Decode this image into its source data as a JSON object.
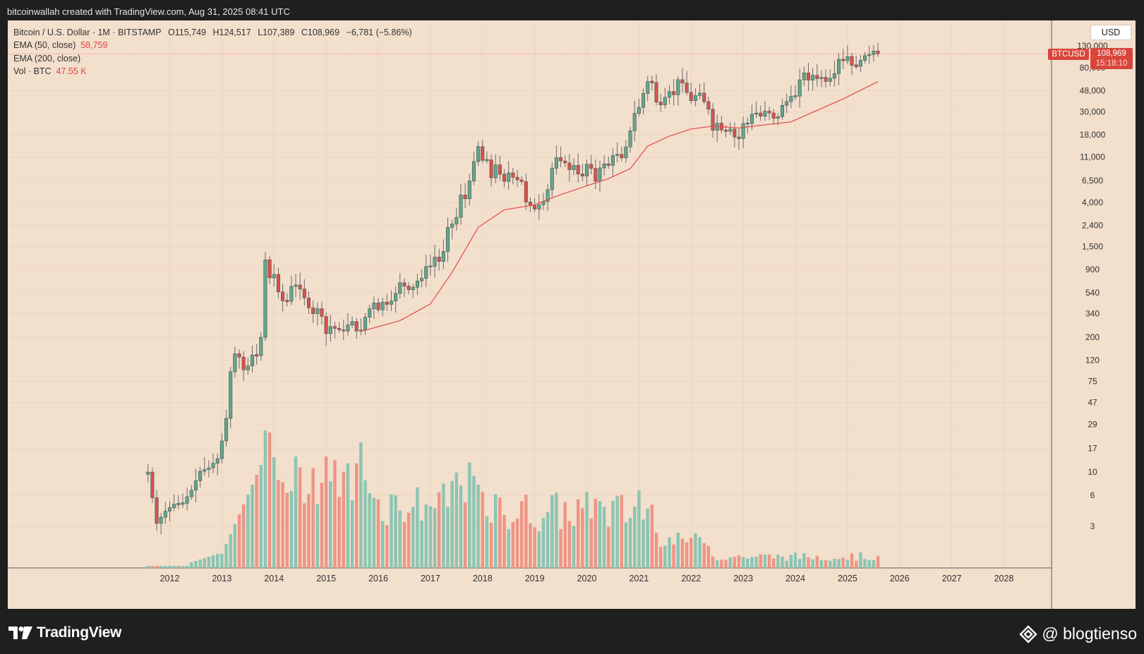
{
  "attribution": "bitcoinwallah created with TradingView.com, Aug 31, 2025 08:41 UTC",
  "legend": {
    "symbol_line": "Bitcoin / U.S. Dollar · 1M · BITSTAMP",
    "open": "O115,749",
    "high": "H124,517",
    "low": "L107,389",
    "close": "C108,969",
    "change": "−6,781 (−5.86%)",
    "ema50_label": "EMA (50, close)",
    "ema50_value": "58,759",
    "ema200_label": "EMA (200, close)",
    "vol_label": "Vol · BTC",
    "vol_value": "47.55 K"
  },
  "currency_button": "USD",
  "symbol_tag": "BTCUSD",
  "price_tag": {
    "price": "108,969",
    "countdown": "15:18:10"
  },
  "footer": {
    "logo_text": "TradingView",
    "watermark": "@ blogtienso"
  },
  "colors": {
    "up": "#5fa88e",
    "down": "#d7534b",
    "vol_up": "#8cc5b3",
    "vol_down": "#ef9585",
    "ema": "#e8484a",
    "background": "#f2dfcc"
  },
  "chart_data": {
    "type": "candlestick",
    "interval": "1M",
    "y_scale": "log",
    "y_ticks": [
      "3",
      "6",
      "10",
      "17",
      "29",
      "47",
      "75",
      "120",
      "200",
      "340",
      "540",
      "900",
      "1,500",
      "2,400",
      "4,000",
      "6,500",
      "11,000",
      "18,000",
      "30,000",
      "48,000",
      "80,000",
      "130,000"
    ],
    "x_ticks": [
      "2012",
      "2013",
      "2014",
      "2015",
      "2016",
      "2017",
      "2018",
      "2019",
      "2020",
      "2021",
      "2022",
      "2023",
      "2024",
      "2025",
      "2026",
      "2027",
      "2028"
    ],
    "x_range": [
      "2011-06",
      "2028-12"
    ],
    "monthly_close_path": [
      [
        "2011-08",
        10.0
      ],
      [
        "2011-10",
        3.2
      ],
      [
        "2011-12",
        4.2
      ],
      [
        "2012-02",
        4.9
      ],
      [
        "2012-04",
        5.0
      ],
      [
        "2012-06",
        6.7
      ],
      [
        "2012-08",
        10.2
      ],
      [
        "2012-10",
        11.0
      ],
      [
        "2012-12",
        13.5
      ],
      [
        "2013-01",
        20
      ],
      [
        "2013-02",
        33
      ],
      [
        "2013-03",
        93
      ],
      [
        "2013-04",
        139
      ],
      [
        "2013-05",
        129
      ],
      [
        "2013-06",
        97
      ],
      [
        "2013-07",
        106
      ],
      [
        "2013-08",
        135
      ],
      [
        "2013-09",
        133
      ],
      [
        "2013-10",
        200
      ],
      [
        "2013-11",
        1120
      ],
      [
        "2013-12",
        750
      ],
      [
        "2014-01",
        810
      ],
      [
        "2014-02",
        550
      ],
      [
        "2014-03",
        450
      ],
      [
        "2014-04",
        445
      ],
      [
        "2014-05",
        620
      ],
      [
        "2014-06",
        640
      ],
      [
        "2014-07",
        585
      ],
      [
        "2014-08",
        480
      ],
      [
        "2014-09",
        385
      ],
      [
        "2014-10",
        338
      ],
      [
        "2014-11",
        378
      ],
      [
        "2014-12",
        318
      ],
      [
        "2015-01",
        217
      ],
      [
        "2015-02",
        254
      ],
      [
        "2015-03",
        244
      ],
      [
        "2015-04",
        236
      ],
      [
        "2015-05",
        230
      ],
      [
        "2015-06",
        263
      ],
      [
        "2015-07",
        284
      ],
      [
        "2015-08",
        230
      ],
      [
        "2015-09",
        236
      ],
      [
        "2015-10",
        313
      ],
      [
        "2015-11",
        377
      ],
      [
        "2015-12",
        430
      ],
      [
        "2016-01",
        368
      ],
      [
        "2016-02",
        437
      ],
      [
        "2016-03",
        416
      ],
      [
        "2016-04",
        448
      ],
      [
        "2016-05",
        531
      ],
      [
        "2016-06",
        673
      ],
      [
        "2016-07",
        624
      ],
      [
        "2016-08",
        575
      ],
      [
        "2016-09",
        608
      ],
      [
        "2016-10",
        700
      ],
      [
        "2016-11",
        742
      ],
      [
        "2016-12",
        963
      ],
      [
        "2017-01",
        968
      ],
      [
        "2017-02",
        1190
      ],
      [
        "2017-03",
        1080
      ],
      [
        "2017-04",
        1348
      ],
      [
        "2017-05",
        2300
      ],
      [
        "2017-06",
        2480
      ],
      [
        "2017-07",
        2875
      ],
      [
        "2017-08",
        4735
      ],
      [
        "2017-09",
        4340
      ],
      [
        "2017-10",
        6450
      ],
      [
        "2017-11",
        9950
      ],
      [
        "2017-12",
        13860
      ],
      [
        "2018-01",
        10220
      ],
      [
        "2018-02",
        10320
      ],
      [
        "2018-03",
        6925
      ],
      [
        "2018-04",
        9240
      ],
      [
        "2018-05",
        7495
      ],
      [
        "2018-06",
        6390
      ],
      [
        "2018-07",
        7730
      ],
      [
        "2018-08",
        7020
      ],
      [
        "2018-09",
        6620
      ],
      [
        "2018-10",
        6370
      ],
      [
        "2018-11",
        4040
      ],
      [
        "2018-12",
        3740
      ],
      [
        "2019-01",
        3460
      ],
      [
        "2019-02",
        3810
      ],
      [
        "2019-03",
        4100
      ],
      [
        "2019-04",
        5320
      ],
      [
        "2019-05",
        8570
      ],
      [
        "2019-06",
        10820
      ],
      [
        "2019-07",
        10080
      ],
      [
        "2019-08",
        9630
      ],
      [
        "2019-09",
        8300
      ],
      [
        "2019-10",
        9150
      ],
      [
        "2019-11",
        7540
      ],
      [
        "2019-12",
        7195
      ],
      [
        "2020-01",
        9350
      ],
      [
        "2020-02",
        8525
      ],
      [
        "2020-03",
        6410
      ],
      [
        "2020-04",
        8630
      ],
      [
        "2020-05",
        9450
      ],
      [
        "2020-06",
        9135
      ],
      [
        "2020-07",
        11350
      ],
      [
        "2020-08",
        11655
      ],
      [
        "2020-09",
        10780
      ],
      [
        "2020-10",
        13800
      ],
      [
        "2020-11",
        19700
      ],
      [
        "2020-12",
        28990
      ],
      [
        "2021-01",
        33110
      ],
      [
        "2021-02",
        45160
      ],
      [
        "2021-03",
        58800
      ],
      [
        "2021-04",
        57720
      ],
      [
        "2021-05",
        37300
      ],
      [
        "2021-06",
        35040
      ],
      [
        "2021-07",
        41460
      ],
      [
        "2021-08",
        47130
      ],
      [
        "2021-09",
        43820
      ],
      [
        "2021-10",
        61300
      ],
      [
        "2021-11",
        56900
      ],
      [
        "2021-12",
        46200
      ],
      [
        "2022-01",
        38500
      ],
      [
        "2022-02",
        43160
      ],
      [
        "2022-03",
        45540
      ],
      [
        "2022-04",
        37640
      ],
      [
        "2022-05",
        31800
      ],
      [
        "2022-06",
        19940
      ],
      [
        "2022-07",
        23300
      ],
      [
        "2022-08",
        20050
      ],
      [
        "2022-09",
        19430
      ],
      [
        "2022-10",
        20490
      ],
      [
        "2022-11",
        17170
      ],
      [
        "2022-12",
        16540
      ],
      [
        "2023-01",
        23140
      ],
      [
        "2023-02",
        23150
      ],
      [
        "2023-03",
        28480
      ],
      [
        "2023-04",
        29230
      ],
      [
        "2023-05",
        27220
      ],
      [
        "2023-06",
        30480
      ],
      [
        "2023-07",
        29230
      ],
      [
        "2023-08",
        25940
      ],
      [
        "2023-09",
        26960
      ],
      [
        "2023-10",
        34660
      ],
      [
        "2023-11",
        37720
      ],
      [
        "2023-12",
        42260
      ],
      [
        "2024-01",
        42580
      ],
      [
        "2024-02",
        61130
      ],
      [
        "2024-03",
        71280
      ],
      [
        "2024-04",
        60640
      ],
      [
        "2024-05",
        67480
      ],
      [
        "2024-06",
        62700
      ],
      [
        "2024-07",
        64620
      ],
      [
        "2024-08",
        58970
      ],
      [
        "2024-09",
        63330
      ],
      [
        "2024-10",
        70290
      ],
      [
        "2024-11",
        96450
      ],
      [
        "2024-12",
        93430
      ],
      [
        "2025-01",
        102400
      ],
      [
        "2025-02",
        84350
      ],
      [
        "2025-03",
        82550
      ],
      [
        "2025-04",
        94200
      ],
      [
        "2025-05",
        104600
      ],
      [
        "2025-06",
        107150
      ],
      [
        "2025-07",
        115750
      ],
      [
        "2025-08",
        108969
      ]
    ],
    "first_open": 9.5,
    "ema_path": [
      [
        "2015-09",
        228
      ],
      [
        "2016-06",
        290
      ],
      [
        "2017-01",
        420
      ],
      [
        "2017-06",
        850
      ],
      [
        "2017-12",
        2300
      ],
      [
        "2018-06",
        3400
      ],
      [
        "2019-01",
        3800
      ],
      [
        "2019-06",
        4600
      ],
      [
        "2020-01",
        5800
      ],
      [
        "2020-06",
        6800
      ],
      [
        "2020-11",
        8500
      ],
      [
        "2021-03",
        14000
      ],
      [
        "2021-08",
        17500
      ],
      [
        "2022-01",
        20500
      ],
      [
        "2022-06",
        21800
      ],
      [
        "2022-12",
        21000
      ],
      [
        "2023-06",
        22500
      ],
      [
        "2023-12",
        24000
      ],
      [
        "2024-06",
        31000
      ],
      [
        "2024-12",
        40000
      ],
      [
        "2025-08",
        58759
      ]
    ]
  }
}
